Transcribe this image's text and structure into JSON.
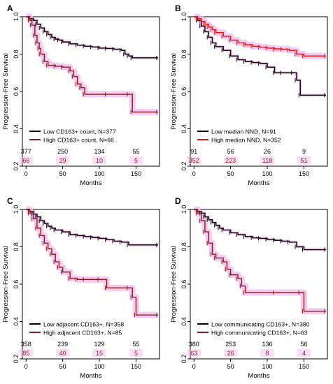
{
  "colors": {
    "low": "#000000",
    "high": "#8B1A1A",
    "high_b": "#E8130C",
    "ci_band": "#F2B8EC",
    "axis": "#000000",
    "background": "#ffffff"
  },
  "chart_data": [
    {
      "type": "line",
      "panel_label": "A",
      "xlabel": "Months",
      "ylabel": "Progression-Free Survival",
      "xlim": [
        -5,
        182
      ],
      "ylim": [
        0.2,
        1.0
      ],
      "xticks": [
        0,
        50,
        100,
        150
      ],
      "yticks": [
        0.2,
        0.4,
        0.6,
        0.8,
        1.0
      ],
      "legend_position": "bottom-left",
      "series": [
        {
          "name": "Low CD163+ count, N=377",
          "role": "low",
          "points": [
            [
              0,
              1.0
            ],
            [
              5,
              0.99
            ],
            [
              10,
              0.98
            ],
            [
              15,
              0.96
            ],
            [
              20,
              0.94
            ],
            [
              25,
              0.92
            ],
            [
              30,
              0.905
            ],
            [
              35,
              0.89
            ],
            [
              40,
              0.88
            ],
            [
              45,
              0.875
            ],
            [
              50,
              0.865
            ],
            [
              60,
              0.855
            ],
            [
              70,
              0.848
            ],
            [
              80,
              0.842
            ],
            [
              90,
              0.838
            ],
            [
              100,
              0.832
            ],
            [
              110,
              0.83
            ],
            [
              120,
              0.826
            ],
            [
              130,
              0.82
            ],
            [
              135,
              0.8
            ],
            [
              140,
              0.79
            ],
            [
              145,
              0.78
            ],
            [
              180,
              0.78
            ]
          ]
        },
        {
          "name": "High CD163+ count, N=66",
          "role": "high",
          "points": [
            [
              0,
              1.0
            ],
            [
              5,
              0.98
            ],
            [
              8,
              0.955
            ],
            [
              12,
              0.9
            ],
            [
              15,
              0.86
            ],
            [
              18,
              0.83
            ],
            [
              20,
              0.8
            ],
            [
              25,
              0.76
            ],
            [
              30,
              0.74
            ],
            [
              40,
              0.735
            ],
            [
              50,
              0.73
            ],
            [
              60,
              0.71
            ],
            [
              65,
              0.68
            ],
            [
              70,
              0.64
            ],
            [
              75,
              0.62
            ],
            [
              80,
              0.585
            ],
            [
              110,
              0.585
            ],
            [
              140,
              0.585
            ],
            [
              145,
              0.49
            ],
            [
              180,
              0.49
            ]
          ]
        }
      ],
      "risk_table": {
        "x": [
          0,
          50,
          100,
          150
        ],
        "low": [
          "377",
          "250",
          "134",
          "55"
        ],
        "high": [
          "66",
          "29",
          "10",
          "5"
        ]
      }
    },
    {
      "type": "line",
      "panel_label": "B",
      "xlabel": "Months",
      "ylabel": "Progression-Free Survival",
      "xlim": [
        -5,
        182
      ],
      "ylim": [
        0.2,
        1.0
      ],
      "xticks": [
        0,
        50,
        100,
        150
      ],
      "yticks": [
        0.2,
        0.4,
        0.6,
        0.8,
        1.0
      ],
      "legend_position": "bottom-left",
      "series": [
        {
          "name": "Low median NND, N=91",
          "role": "low",
          "points": [
            [
              0,
              1.0
            ],
            [
              5,
              0.98
            ],
            [
              10,
              0.95
            ],
            [
              15,
              0.92
            ],
            [
              20,
              0.89
            ],
            [
              25,
              0.86
            ],
            [
              30,
              0.84
            ],
            [
              40,
              0.82
            ],
            [
              50,
              0.79
            ],
            [
              60,
              0.77
            ],
            [
              70,
              0.76
            ],
            [
              80,
              0.755
            ],
            [
              90,
              0.75
            ],
            [
              100,
              0.73
            ],
            [
              110,
              0.7
            ],
            [
              120,
              0.7
            ],
            [
              135,
              0.7
            ],
            [
              140,
              0.66
            ],
            [
              145,
              0.58
            ],
            [
              180,
              0.58
            ]
          ]
        },
        {
          "name": "High median NND, N=352",
          "role": "high_b",
          "points": [
            [
              0,
              1.0
            ],
            [
              5,
              0.99
            ],
            [
              10,
              0.975
            ],
            [
              15,
              0.96
            ],
            [
              20,
              0.945
            ],
            [
              25,
              0.93
            ],
            [
              30,
              0.915
            ],
            [
              40,
              0.895
            ],
            [
              50,
              0.875
            ],
            [
              60,
              0.86
            ],
            [
              70,
              0.85
            ],
            [
              80,
              0.842
            ],
            [
              90,
              0.837
            ],
            [
              100,
              0.832
            ],
            [
              110,
              0.828
            ],
            [
              120,
              0.826
            ],
            [
              130,
              0.82
            ],
            [
              140,
              0.8
            ],
            [
              150,
              0.79
            ],
            [
              180,
              0.79
            ]
          ]
        }
      ],
      "risk_table": {
        "x": [
          0,
          50,
          100,
          150
        ],
        "low": [
          "91",
          "56",
          "26",
          "9"
        ],
        "high": [
          "352",
          "223",
          "118",
          "51"
        ]
      }
    },
    {
      "type": "line",
      "panel_label": "C",
      "xlabel": "Months",
      "ylabel": "Progression-Free Survival",
      "xlim": [
        -5,
        182
      ],
      "ylim": [
        0.2,
        1.0
      ],
      "xticks": [
        0,
        50,
        100,
        150
      ],
      "yticks": [
        0.2,
        0.4,
        0.6,
        0.8,
        1.0
      ],
      "legend_position": "bottom-left",
      "series": [
        {
          "name": "Low adjacent CD163+, N=358",
          "role": "low",
          "points": [
            [
              0,
              1.0
            ],
            [
              5,
              0.99
            ],
            [
              10,
              0.975
            ],
            [
              15,
              0.96
            ],
            [
              20,
              0.94
            ],
            [
              25,
              0.925
            ],
            [
              30,
              0.91
            ],
            [
              35,
              0.9
            ],
            [
              40,
              0.89
            ],
            [
              50,
              0.88
            ],
            [
              60,
              0.865
            ],
            [
              70,
              0.86
            ],
            [
              80,
              0.855
            ],
            [
              90,
              0.85
            ],
            [
              100,
              0.845
            ],
            [
              110,
              0.838
            ],
            [
              120,
              0.83
            ],
            [
              130,
              0.825
            ],
            [
              140,
              0.81
            ],
            [
              180,
              0.81
            ]
          ]
        },
        {
          "name": "High adjacent CD163+, N=85",
          "role": "high",
          "points": [
            [
              0,
              1.0
            ],
            [
              5,
              0.98
            ],
            [
              10,
              0.95
            ],
            [
              15,
              0.9
            ],
            [
              20,
              0.86
            ],
            [
              25,
              0.82
            ],
            [
              30,
              0.79
            ],
            [
              35,
              0.76
            ],
            [
              40,
              0.72
            ],
            [
              45,
              0.69
            ],
            [
              50,
              0.665
            ],
            [
              60,
              0.63
            ],
            [
              70,
              0.625
            ],
            [
              80,
              0.625
            ],
            [
              100,
              0.625
            ],
            [
              110,
              0.58
            ],
            [
              140,
              0.58
            ],
            [
              145,
              0.53
            ],
            [
              150,
              0.435
            ],
            [
              180,
              0.435
            ]
          ]
        }
      ],
      "risk_table": {
        "x": [
          0,
          50,
          100,
          150
        ],
        "low": [
          "358",
          "239",
          "129",
          "55"
        ],
        "high": [
          "85",
          "40",
          "15",
          "5"
        ]
      }
    },
    {
      "type": "line",
      "panel_label": "D",
      "xlabel": "Months",
      "ylabel": "Progression-Free Survival",
      "xlim": [
        -5,
        182
      ],
      "ylim": [
        0.2,
        1.0
      ],
      "xticks": [
        0,
        50,
        100,
        150
      ],
      "yticks": [
        0.2,
        0.4,
        0.6,
        0.8,
        1.0
      ],
      "legend_position": "bottom-left",
      "series": [
        {
          "name": "Low communicating CD163+, N=380",
          "role": "low",
          "points": [
            [
              0,
              1.0
            ],
            [
              5,
              0.99
            ],
            [
              10,
              0.98
            ],
            [
              15,
              0.96
            ],
            [
              20,
              0.945
            ],
            [
              25,
              0.93
            ],
            [
              30,
              0.915
            ],
            [
              35,
              0.9
            ],
            [
              40,
              0.89
            ],
            [
              50,
              0.875
            ],
            [
              60,
              0.865
            ],
            [
              70,
              0.855
            ],
            [
              80,
              0.848
            ],
            [
              90,
              0.845
            ],
            [
              100,
              0.84
            ],
            [
              110,
              0.835
            ],
            [
              120,
              0.83
            ],
            [
              130,
              0.825
            ],
            [
              140,
              0.8
            ],
            [
              150,
              0.785
            ],
            [
              180,
              0.785
            ]
          ]
        },
        {
          "name": "High communicating CD163+, N=63",
          "role": "high",
          "points": [
            [
              0,
              1.0
            ],
            [
              5,
              0.98
            ],
            [
              10,
              0.94
            ],
            [
              15,
              0.88
            ],
            [
              20,
              0.82
            ],
            [
              25,
              0.76
            ],
            [
              30,
              0.74
            ],
            [
              40,
              0.72
            ],
            [
              45,
              0.68
            ],
            [
              50,
              0.65
            ],
            [
              60,
              0.63
            ],
            [
              65,
              0.59
            ],
            [
              70,
              0.555
            ],
            [
              110,
              0.555
            ],
            [
              145,
              0.555
            ],
            [
              150,
              0.455
            ],
            [
              180,
              0.455
            ]
          ]
        }
      ],
      "risk_table": {
        "x": [
          0,
          50,
          100,
          150
        ],
        "low": [
          "380",
          "253",
          "136",
          "56"
        ],
        "high": [
          "63",
          "26",
          "8",
          "4"
        ]
      }
    }
  ]
}
